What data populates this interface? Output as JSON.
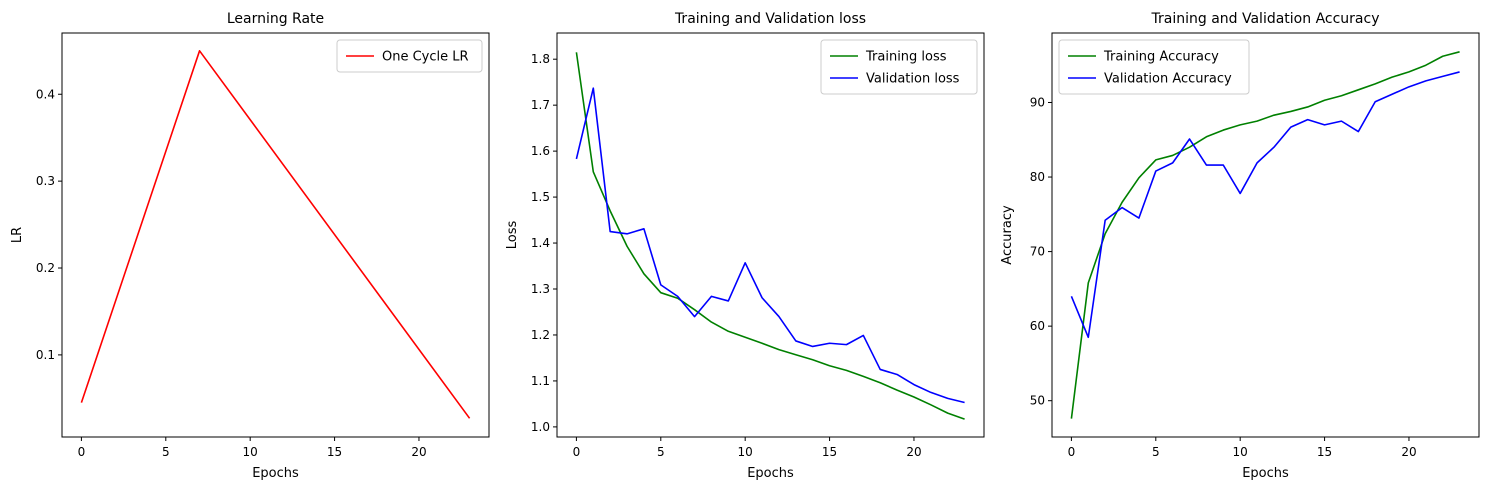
{
  "chart_data": [
    {
      "type": "line",
      "title": "Learning Rate",
      "xlabel": "Epochs",
      "ylabel": "LR",
      "xlim": [
        -1.15,
        24.15
      ],
      "ylim": [
        0.0055,
        0.4705
      ],
      "xticks": [
        0,
        5,
        10,
        15,
        20
      ],
      "yticks": [
        0.1,
        0.2,
        0.3,
        0.4
      ],
      "xtick_labels": [
        "0",
        "5",
        "10",
        "15",
        "20"
      ],
      "ytick_labels": [
        "0.1",
        "0.2",
        "0.3",
        "0.4"
      ],
      "legend_position": "top-right",
      "series": [
        {
          "name": "One Cycle LR",
          "color": "#ff0000",
          "x": [
            0,
            7,
            23
          ],
          "y": [
            0.045,
            0.45,
            0.027
          ]
        }
      ]
    },
    {
      "type": "line",
      "title": "Training and Validation loss",
      "xlabel": "Epochs",
      "ylabel": "Loss",
      "xlim": [
        -1.15,
        24.15
      ],
      "ylim": [
        0.978,
        1.857
      ],
      "xticks": [
        0,
        5,
        10,
        15,
        20
      ],
      "yticks": [
        1.0,
        1.1,
        1.2,
        1.3,
        1.4,
        1.5,
        1.6,
        1.7,
        1.8
      ],
      "xtick_labels": [
        "0",
        "5",
        "10",
        "15",
        "20"
      ],
      "ytick_labels": [
        "1.0",
        "1.1",
        "1.2",
        "1.3",
        "1.4",
        "1.5",
        "1.6",
        "1.7",
        "1.8"
      ],
      "legend_position": "top-right",
      "series": [
        {
          "name": "Training loss",
          "color": "#008000",
          "x": [
            0,
            1,
            2,
            3,
            4,
            5,
            6,
            7,
            8,
            9,
            10,
            11,
            12,
            13,
            14,
            15,
            16,
            17,
            18,
            19,
            20,
            21,
            22,
            23
          ],
          "y": [
            1.815,
            1.555,
            1.47,
            1.393,
            1.333,
            1.292,
            1.28,
            1.255,
            1.228,
            1.208,
            1.195,
            1.182,
            1.168,
            1.157,
            1.146,
            1.133,
            1.123,
            1.11,
            1.096,
            1.08,
            1.065,
            1.048,
            1.03,
            1.017
          ]
        },
        {
          "name": "Validation loss",
          "color": "#0000ff",
          "x": [
            0,
            1,
            2,
            3,
            4,
            5,
            6,
            7,
            8,
            9,
            10,
            11,
            12,
            13,
            14,
            15,
            16,
            17,
            18,
            19,
            20,
            21,
            22,
            23
          ],
          "y": [
            1.583,
            1.737,
            1.425,
            1.42,
            1.431,
            1.309,
            1.284,
            1.24,
            1.284,
            1.274,
            1.357,
            1.281,
            1.24,
            1.187,
            1.175,
            1.182,
            1.179,
            1.199,
            1.125,
            1.114,
            1.092,
            1.075,
            1.062,
            1.053
          ]
        }
      ]
    },
    {
      "type": "line",
      "title": "Training and Validation Accuracy",
      "xlabel": "Epochs",
      "ylabel": "Accuracy",
      "xlim": [
        -1.15,
        24.15
      ],
      "ylim": [
        45.13,
        99.32
      ],
      "xticks": [
        0,
        5,
        10,
        15,
        20
      ],
      "yticks": [
        50,
        60,
        70,
        80,
        90
      ],
      "xtick_labels": [
        "0",
        "5",
        "10",
        "15",
        "20"
      ],
      "ytick_labels": [
        "50",
        "60",
        "70",
        "80",
        "90"
      ],
      "legend_position": "top-left",
      "series": [
        {
          "name": "Training Accuracy",
          "color": "#008000",
          "x": [
            0,
            1,
            2,
            3,
            4,
            5,
            6,
            7,
            8,
            9,
            10,
            11,
            12,
            13,
            14,
            15,
            16,
            17,
            18,
            19,
            20,
            21,
            22,
            23
          ],
          "y": [
            47.6,
            65.8,
            72.4,
            76.6,
            79.9,
            82.3,
            82.9,
            84.0,
            85.4,
            86.3,
            87.0,
            87.5,
            88.3,
            88.8,
            89.4,
            90.3,
            90.9,
            91.7,
            92.5,
            93.4,
            94.1,
            95.0,
            96.2,
            96.8
          ]
        },
        {
          "name": "Validation Accuracy",
          "color": "#0000ff",
          "x": [
            0,
            1,
            2,
            3,
            4,
            5,
            6,
            7,
            8,
            9,
            10,
            11,
            12,
            13,
            14,
            15,
            16,
            17,
            18,
            19,
            20,
            21,
            22,
            23
          ],
          "y": [
            64.0,
            58.5,
            74.2,
            75.9,
            74.5,
            80.8,
            81.9,
            85.1,
            81.6,
            81.6,
            77.8,
            81.9,
            84.0,
            86.7,
            87.7,
            87.0,
            87.5,
            86.1,
            90.1,
            91.1,
            92.1,
            92.9,
            93.5,
            94.1
          ]
        }
      ]
    }
  ]
}
